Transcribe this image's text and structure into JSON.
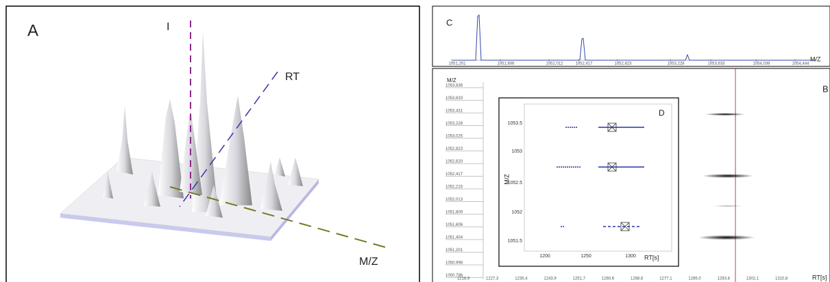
{
  "panel_a": {
    "label": "A",
    "axis_i": "I",
    "axis_rt": "RT",
    "axis_mz": "M/Z"
  },
  "panel_c": {
    "label": "C",
    "x_axis_label": "M/Z",
    "xticks": [
      "1051,201",
      "1051,606",
      "1052,012",
      "1052,417",
      "1052,823",
      "1053,228",
      "1053,633",
      "1054,039",
      "1054,444"
    ]
  },
  "panel_b": {
    "label": "B",
    "y_axis_label": "M/Z",
    "x_axis_label": "RT[s]",
    "yticks": [
      "1053,836",
      "1053,633",
      "1053,431",
      "1053,228",
      "1053,025",
      "1052,823",
      "1052,620",
      "1052,417",
      "1052,215",
      "1052,013",
      "1051,809",
      "1051,606",
      "1051,404",
      "1051,201",
      "1050,998",
      "1050,796"
    ],
    "xticks": [
      "1218,9",
      "1227,3",
      "1235,4",
      "1243,9",
      "1251,7",
      "1260,6",
      "1268,6",
      "1277,1",
      "1285,0",
      "1293,8",
      "1302,1",
      "1310,8"
    ]
  },
  "panel_d": {
    "label": "D",
    "y_axis_label": "M/Z",
    "x_axis_label": "RT[s]",
    "yticks": [
      "1053.5",
      "1053",
      "1052.5",
      "1052",
      "1051.5"
    ],
    "xticks": [
      "1200",
      "1250",
      "1300"
    ]
  }
}
